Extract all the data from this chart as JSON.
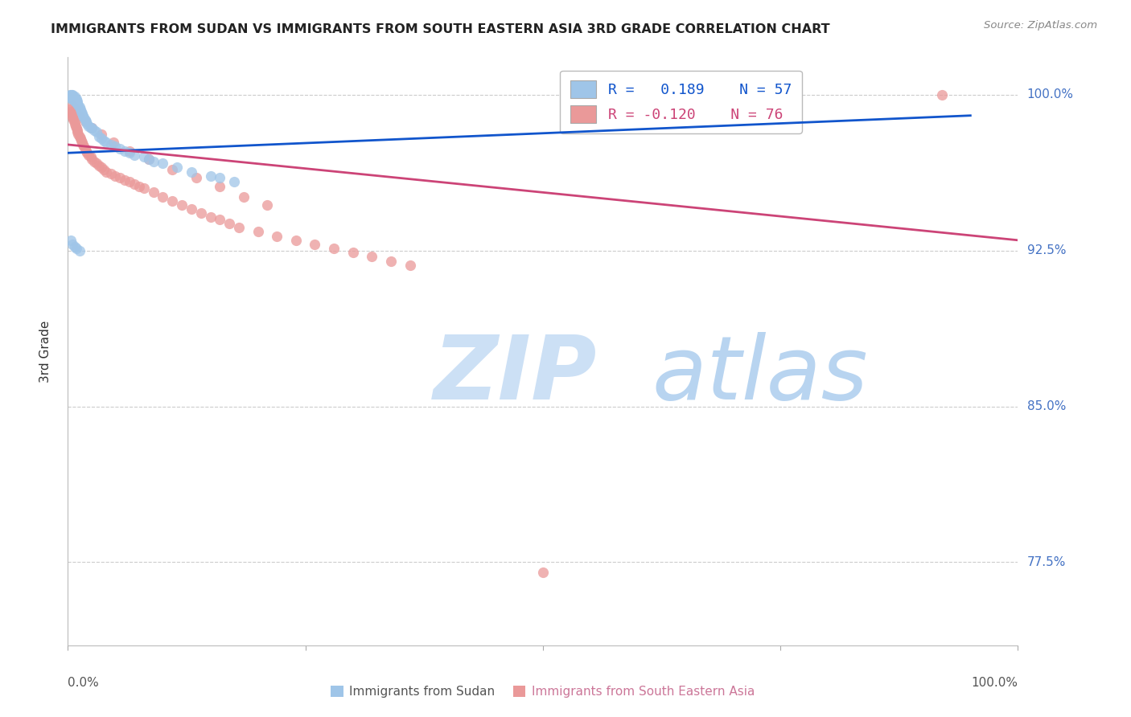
{
  "title": "IMMIGRANTS FROM SUDAN VS IMMIGRANTS FROM SOUTH EASTERN ASIA 3RD GRADE CORRELATION CHART",
  "source": "Source: ZipAtlas.com",
  "ylabel": "3rd Grade",
  "yticks_pct": [
    77.5,
    85.0,
    92.5,
    100.0
  ],
  "ytick_labels": [
    "77.5%",
    "85.0%",
    "92.5%",
    "100.0%"
  ],
  "xlim": [
    0.0,
    1.0
  ],
  "ylim": [
    0.735,
    1.018
  ],
  "blue_color": "#9fc5e8",
  "pink_color": "#ea9999",
  "blue_line_color": "#1155cc",
  "pink_line_color": "#cc4477",
  "scatter_alpha": 0.75,
  "scatter_size": 90,
  "background_color": "#ffffff",
  "grid_color": "#cccccc",
  "right_label_color": "#4472c4",
  "watermark_zip_color": "#cce0f5",
  "watermark_atlas_color": "#b8d4f0",
  "blue_scatter_x": [
    0.002,
    0.003,
    0.003,
    0.004,
    0.004,
    0.005,
    0.005,
    0.005,
    0.006,
    0.006,
    0.007,
    0.007,
    0.008,
    0.008,
    0.009,
    0.009,
    0.01,
    0.01,
    0.011,
    0.012,
    0.013,
    0.014,
    0.015,
    0.016,
    0.017,
    0.018,
    0.019,
    0.02,
    0.022,
    0.024,
    0.025,
    0.028,
    0.03,
    0.033,
    0.035,
    0.038,
    0.04,
    0.045,
    0.05,
    0.055,
    0.06,
    0.065,
    0.07,
    0.08,
    0.085,
    0.09,
    0.1,
    0.115,
    0.13,
    0.15,
    0.16,
    0.175,
    0.003,
    0.005,
    0.007,
    0.009,
    0.012
  ],
  "blue_scatter_y": [
    1.0,
    0.999,
    1.0,
    0.998,
    1.0,
    0.999,
    0.998,
    1.0,
    0.999,
    0.998,
    0.997,
    0.999,
    0.998,
    0.997,
    0.996,
    0.998,
    0.997,
    0.996,
    0.995,
    0.994,
    0.993,
    0.992,
    0.991,
    0.99,
    0.989,
    0.988,
    0.987,
    0.986,
    0.985,
    0.984,
    0.984,
    0.983,
    0.982,
    0.98,
    0.979,
    0.978,
    0.977,
    0.976,
    0.975,
    0.974,
    0.973,
    0.972,
    0.971,
    0.97,
    0.969,
    0.968,
    0.967,
    0.965,
    0.963,
    0.961,
    0.96,
    0.958,
    0.93,
    0.928,
    0.927,
    0.926,
    0.925
  ],
  "pink_scatter_x": [
    0.002,
    0.003,
    0.004,
    0.005,
    0.005,
    0.006,
    0.007,
    0.007,
    0.008,
    0.009,
    0.01,
    0.01,
    0.011,
    0.012,
    0.013,
    0.014,
    0.015,
    0.016,
    0.017,
    0.018,
    0.019,
    0.02,
    0.022,
    0.024,
    0.025,
    0.028,
    0.03,
    0.033,
    0.035,
    0.038,
    0.04,
    0.045,
    0.05,
    0.055,
    0.06,
    0.065,
    0.07,
    0.075,
    0.08,
    0.09,
    0.1,
    0.11,
    0.12,
    0.13,
    0.14,
    0.15,
    0.16,
    0.17,
    0.18,
    0.2,
    0.22,
    0.24,
    0.26,
    0.28,
    0.3,
    0.32,
    0.34,
    0.36,
    0.005,
    0.008,
    0.012,
    0.018,
    0.025,
    0.035,
    0.048,
    0.065,
    0.085,
    0.11,
    0.135,
    0.16,
    0.185,
    0.21,
    0.5,
    0.92
  ],
  "pink_scatter_y": [
    0.993,
    0.992,
    0.991,
    0.99,
    0.989,
    0.988,
    0.987,
    0.986,
    0.985,
    0.984,
    0.983,
    0.982,
    0.981,
    0.98,
    0.979,
    0.978,
    0.977,
    0.976,
    0.975,
    0.974,
    0.973,
    0.972,
    0.971,
    0.97,
    0.969,
    0.968,
    0.967,
    0.966,
    0.965,
    0.964,
    0.963,
    0.962,
    0.961,
    0.96,
    0.959,
    0.958,
    0.957,
    0.956,
    0.955,
    0.953,
    0.951,
    0.949,
    0.947,
    0.945,
    0.943,
    0.941,
    0.94,
    0.938,
    0.936,
    0.934,
    0.932,
    0.93,
    0.928,
    0.926,
    0.924,
    0.922,
    0.92,
    0.918,
    0.995,
    0.993,
    0.99,
    0.987,
    0.984,
    0.981,
    0.977,
    0.973,
    0.969,
    0.964,
    0.96,
    0.956,
    0.951,
    0.947,
    0.77,
    1.0
  ],
  "blue_line_x": [
    0.0,
    0.95
  ],
  "blue_line_y_start": 0.972,
  "blue_line_y_end": 0.99,
  "pink_line_x": [
    0.0,
    1.0
  ],
  "pink_line_y_start": 0.976,
  "pink_line_y_end": 0.93
}
